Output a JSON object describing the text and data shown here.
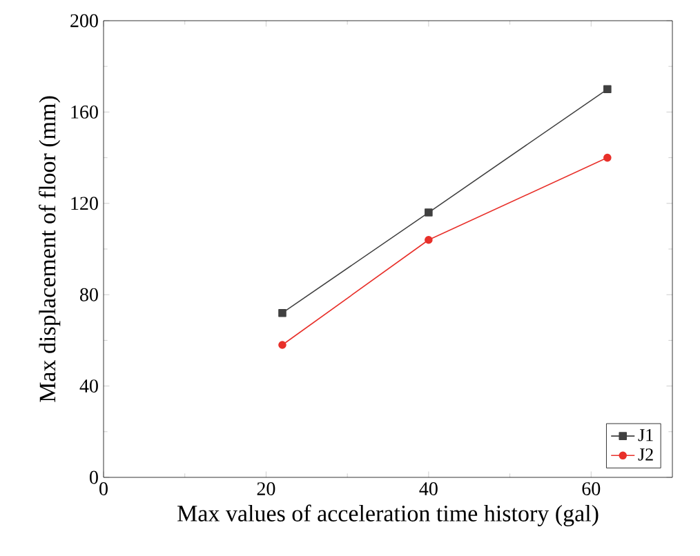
{
  "chart_data": {
    "type": "line",
    "xlabel": "Max values of acceleration time history (gal)",
    "ylabel": "Max displacement of floor (mm)",
    "xlim": [
      0,
      70
    ],
    "xticks": [
      0,
      20,
      40,
      60
    ],
    "ylim": [
      0,
      200
    ],
    "yticks": [
      0,
      40,
      80,
      120,
      160,
      200
    ],
    "legend": "bottom right",
    "series": [
      {
        "name": "J1",
        "color": "#404040",
        "marker": "square",
        "x": [
          22,
          40,
          62
        ],
        "values": [
          72,
          116,
          170
        ]
      },
      {
        "name": "J2",
        "color": "#e8302a",
        "marker": "circle",
        "x": [
          22,
          40,
          62
        ],
        "values": [
          58,
          104,
          140
        ]
      }
    ]
  }
}
